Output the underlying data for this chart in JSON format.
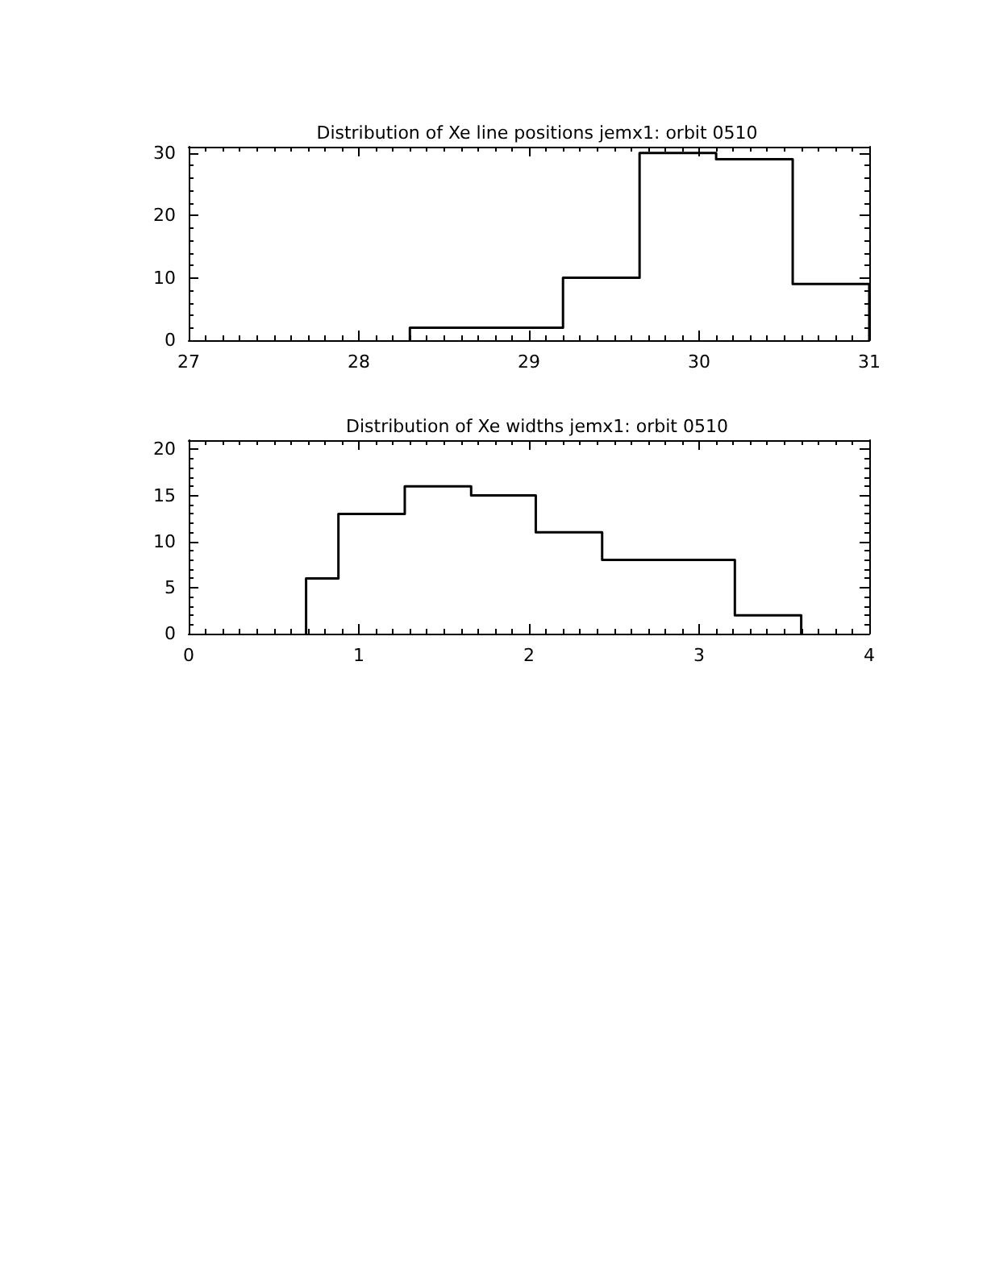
{
  "chart_data": [
    {
      "type": "histogram",
      "title": "Distribution of Xe line positions jemx1: orbit 0510",
      "bins": [
        28.3,
        28.75,
        29.2,
        29.65,
        30.1,
        30.55,
        31.0
      ],
      "values": [
        2,
        2,
        10,
        30,
        29,
        9
      ],
      "color": "#000000",
      "xlim": [
        27,
        31
      ],
      "xticks": [
        27,
        28,
        29,
        30,
        31
      ],
      "ylim": [
        0,
        31
      ],
      "yticks": [
        0,
        10,
        20,
        30
      ]
    },
    {
      "type": "histogram",
      "title": "Distribution of Xe widths jemx1: orbit 0510",
      "bins": [
        0.69,
        0.88,
        1.27,
        1.66,
        2.04,
        2.43,
        2.82,
        3.21,
        3.6
      ],
      "values": [
        6,
        13,
        16,
        15,
        11,
        8,
        8,
        2
      ],
      "color": "#000000",
      "xlim": [
        0,
        4
      ],
      "xticks": [
        0,
        1,
        2,
        3,
        4
      ],
      "ylim": [
        0,
        21
      ],
      "yticks": [
        0,
        5,
        10,
        15,
        20
      ]
    }
  ]
}
